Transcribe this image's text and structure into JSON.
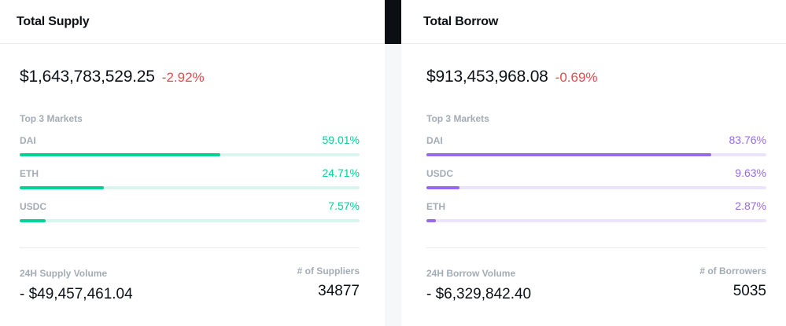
{
  "supply": {
    "title": "Total Supply",
    "total": "$1,643,783,529.25",
    "change": "-2.92%",
    "markets_label": "Top 3 Markets",
    "markets": [
      {
        "name": "DAI",
        "pct_label": "59.01%",
        "pct": 59.01
      },
      {
        "name": "ETH",
        "pct_label": "24.71%",
        "pct": 24.71
      },
      {
        "name": "USDC",
        "pct_label": "7.57%",
        "pct": 7.57
      }
    ],
    "volume_label": "24H Supply Volume",
    "volume": "- $49,457,461.04",
    "count_label": "# of Suppliers",
    "count": "34877",
    "accent": "#00d395"
  },
  "borrow": {
    "title": "Total Borrow",
    "total": "$913,453,968.08",
    "change": "-0.69%",
    "markets_label": "Top 3 Markets",
    "markets": [
      {
        "name": "DAI",
        "pct_label": "83.76%",
        "pct": 83.76
      },
      {
        "name": "USDC",
        "pct_label": "9.63%",
        "pct": 9.63
      },
      {
        "name": "ETH",
        "pct_label": "2.87%",
        "pct": 2.87
      }
    ],
    "volume_label": "24H Borrow Volume",
    "volume": "- $6,329,842.40",
    "count_label": "# of Borrowers",
    "count": "5035",
    "accent": "#9669ed"
  },
  "negative_color": "#e5494d"
}
